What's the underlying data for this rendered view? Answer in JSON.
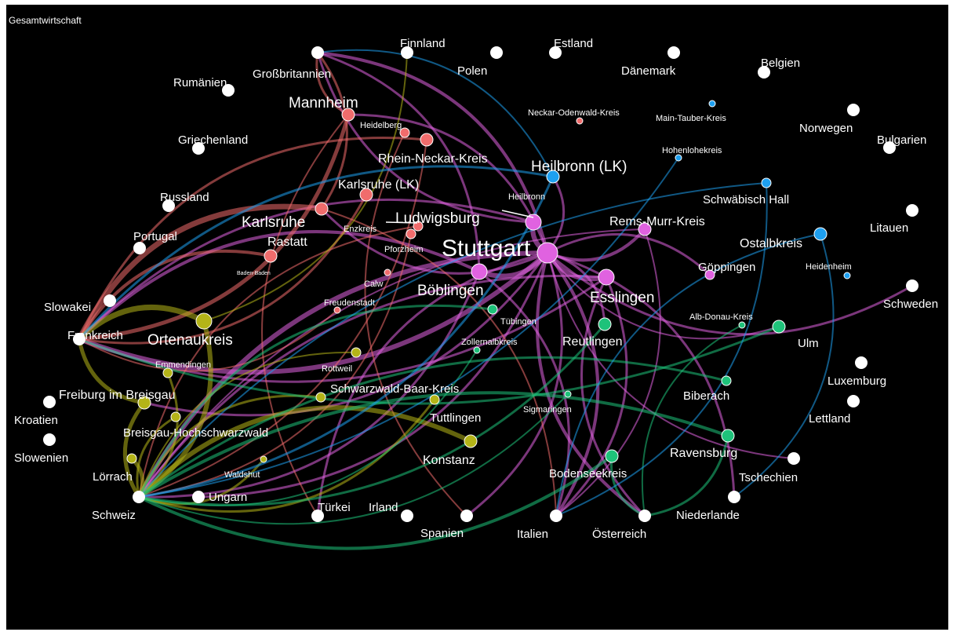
{
  "caption": "Gesamtwirtschaft",
  "groups": {
    "international": "#ffffff",
    "stuttgart": "#e062e0",
    "karlsruhe": "#f06c6c",
    "freiburg": "#b4b418",
    "tuebingen": "#1ec27a",
    "heilbronn": "#1ea0f0"
  },
  "nodes": [
    {
      "id": "grossbritannien",
      "label": "Großbritannien",
      "group": "international",
      "size": "medium"
    },
    {
      "id": "finnland",
      "label": "Finnland",
      "group": "international",
      "size": "medium"
    },
    {
      "id": "estland",
      "label": "Estland",
      "group": "international",
      "size": "medium"
    },
    {
      "id": "polen",
      "label": "Polen",
      "group": "international",
      "size": "medium"
    },
    {
      "id": "daenemark",
      "label": "Dänemark",
      "group": "international",
      "size": "medium"
    },
    {
      "id": "belgien",
      "label": "Belgien",
      "group": "international",
      "size": "medium"
    },
    {
      "id": "rumaenien",
      "label": "Rumänien",
      "group": "international",
      "size": "medium"
    },
    {
      "id": "norwegen",
      "label": "Norwegen",
      "group": "international",
      "size": "medium"
    },
    {
      "id": "bulgarien",
      "label": "Bulgarien",
      "group": "international",
      "size": "medium"
    },
    {
      "id": "griechenland",
      "label": "Griechenland",
      "group": "international",
      "size": "medium"
    },
    {
      "id": "russland",
      "label": "Russland",
      "group": "international",
      "size": "medium"
    },
    {
      "id": "litauen",
      "label": "Litauen",
      "group": "international",
      "size": "medium"
    },
    {
      "id": "portugal",
      "label": "Portugal",
      "group": "international",
      "size": "medium"
    },
    {
      "id": "schweden",
      "label": "Schweden",
      "group": "international",
      "size": "medium"
    },
    {
      "id": "slowakei",
      "label": "Slowakei",
      "group": "international",
      "size": "medium"
    },
    {
      "id": "frankreich",
      "label": "Frankreich",
      "group": "international",
      "size": "medium"
    },
    {
      "id": "luxemburg",
      "label": "Luxemburg",
      "group": "international",
      "size": "medium"
    },
    {
      "id": "lettland",
      "label": "Lettland",
      "group": "international",
      "size": "medium"
    },
    {
      "id": "kroatien",
      "label": "Kroatien",
      "group": "international",
      "size": "medium"
    },
    {
      "id": "slowenien",
      "label": "Slowenien",
      "group": "international",
      "size": "medium"
    },
    {
      "id": "tschechien",
      "label": "Tschechien",
      "group": "international",
      "size": "medium"
    },
    {
      "id": "schweiz",
      "label": "Schweiz",
      "group": "international",
      "size": "medium"
    },
    {
      "id": "ungarn",
      "label": "Ungarn",
      "group": "international",
      "size": "medium"
    },
    {
      "id": "tuerkei",
      "label": "Türkei",
      "group": "international",
      "size": "medium"
    },
    {
      "id": "irland",
      "label": "Irland",
      "group": "international",
      "size": "medium"
    },
    {
      "id": "spanien",
      "label": "Spanien",
      "group": "international",
      "size": "medium"
    },
    {
      "id": "italien",
      "label": "Italien",
      "group": "international",
      "size": "medium"
    },
    {
      "id": "oesterreich",
      "label": "Österreich",
      "group": "international",
      "size": "medium"
    },
    {
      "id": "niederlande",
      "label": "Niederlande",
      "group": "international",
      "size": "medium"
    },
    {
      "id": "stuttgart",
      "label": "Stuttgart",
      "group": "stuttgart",
      "size": "huge"
    },
    {
      "id": "ludwigsburg",
      "label": "Ludwigsburg",
      "group": "stuttgart",
      "size": "large"
    },
    {
      "id": "boeblingen",
      "label": "Böblingen",
      "group": "stuttgart",
      "size": "large"
    },
    {
      "id": "esslingen",
      "label": "Esslingen",
      "group": "stuttgart",
      "size": "large"
    },
    {
      "id": "remsmurr",
      "label": "Rems-Murr-Kreis",
      "group": "stuttgart",
      "size": "medium"
    },
    {
      "id": "goeppingen",
      "label": "Göppingen",
      "group": "stuttgart",
      "size": "small"
    },
    {
      "id": "mannheim",
      "label": "Mannheim",
      "group": "karlsruhe",
      "size": "medium"
    },
    {
      "id": "heidelberg",
      "label": "Heidelberg",
      "group": "karlsruhe",
      "size": "small"
    },
    {
      "id": "rheinneckar",
      "label": "Rhein-Neckar-Kreis",
      "group": "karlsruhe",
      "size": "medium"
    },
    {
      "id": "karlsruhelk",
      "label": "Karlsruhe (LK)",
      "group": "karlsruhe",
      "size": "medium"
    },
    {
      "id": "karlsruhe",
      "label": "Karlsruhe",
      "group": "karlsruhe",
      "size": "medium"
    },
    {
      "id": "enzkreis",
      "label": "Enzkreis",
      "group": "karlsruhe",
      "size": "small"
    },
    {
      "id": "pforzheim",
      "label": "Pforzheim",
      "group": "karlsruhe",
      "size": "small"
    },
    {
      "id": "rastatt",
      "label": "Rastatt",
      "group": "karlsruhe",
      "size": "medium"
    },
    {
      "id": "badenbaden",
      "label": "Baden-Baden",
      "group": "karlsruhe",
      "size": "tiny"
    },
    {
      "id": "calw",
      "label": "Calw",
      "group": "karlsruhe",
      "size": "tiny"
    },
    {
      "id": "freudenstadt",
      "label": "Freudenstadt",
      "group": "karlsruhe",
      "size": "tiny"
    },
    {
      "id": "neckarodenwald",
      "label": "Neckar-Odenwald-Kreis",
      "group": "karlsruhe",
      "size": "tiny"
    },
    {
      "id": "ortenaukreis",
      "label": "Ortenaukreis",
      "group": "freiburg",
      "size": "large"
    },
    {
      "id": "emmendingen",
      "label": "Emmendingen",
      "group": "freiburg",
      "size": "small"
    },
    {
      "id": "rottweil",
      "label": "Rottweil",
      "group": "freiburg",
      "size": "small"
    },
    {
      "id": "freiburg",
      "label": "Freiburg im Breisgau",
      "group": "freiburg",
      "size": "medium"
    },
    {
      "id": "schwarzwaldbaar",
      "label": "Schwarzwald-Baar-Kreis",
      "group": "freiburg",
      "size": "small"
    },
    {
      "id": "tuttlingen",
      "label": "Tuttlingen",
      "group": "freiburg",
      "size": "small"
    },
    {
      "id": "breisgau",
      "label": "Breisgau-Hochschwarzwald",
      "group": "freiburg",
      "size": "small"
    },
    {
      "id": "konstanz",
      "label": "Konstanz",
      "group": "freiburg",
      "size": "medium"
    },
    {
      "id": "loerrach",
      "label": "Lörrach",
      "group": "freiburg",
      "size": "small"
    },
    {
      "id": "waldshut",
      "label": "Waldshut",
      "group": "freiburg",
      "size": "tiny"
    },
    {
      "id": "tuebingen",
      "label": "Tübingen",
      "group": "tuebingen",
      "size": "small"
    },
    {
      "id": "zollernalb",
      "label": "Zollernalbkreis",
      "group": "tuebingen",
      "size": "tiny"
    },
    {
      "id": "reutlingen",
      "label": "Reutlingen",
      "group": "tuebingen",
      "size": "medium"
    },
    {
      "id": "albdonau",
      "label": "Alb-Donau-Kreis",
      "group": "tuebingen",
      "size": "tiny"
    },
    {
      "id": "ulm",
      "label": "Ulm",
      "group": "tuebingen",
      "size": "medium"
    },
    {
      "id": "biberach",
      "label": "Biberach",
      "group": "tuebingen",
      "size": "small"
    },
    {
      "id": "sigmaringen",
      "label": "Sigmaringen",
      "group": "tuebingen",
      "size": "tiny"
    },
    {
      "id": "ravensburg",
      "label": "Ravensburg",
      "group": "tuebingen",
      "size": "medium"
    },
    {
      "id": "bodensee",
      "label": "Bodenseekreis",
      "group": "tuebingen",
      "size": "medium"
    },
    {
      "id": "heilbronnlk",
      "label": "Heilbronn (LK)",
      "group": "heilbronn",
      "size": "medium"
    },
    {
      "id": "heilbronn",
      "label": "Heilbronn",
      "group": "heilbronn",
      "size": "tiny"
    },
    {
      "id": "maintauber",
      "label": "Main-Tauber-Kreis",
      "group": "heilbronn",
      "size": "tiny"
    },
    {
      "id": "hohenlohe",
      "label": "Hohenlohekreis",
      "group": "heilbronn",
      "size": "tiny"
    },
    {
      "id": "schwaebischhall",
      "label": "Schwäbisch Hall",
      "group": "heilbronn",
      "size": "small"
    },
    {
      "id": "ostalb",
      "label": "Ostalbkreis",
      "group": "heilbronn",
      "size": "medium"
    },
    {
      "id": "heidenheim",
      "label": "Heidenheim",
      "group": "heilbronn",
      "size": "tiny"
    }
  ],
  "edges": [
    {
      "from": "stuttgart",
      "to": "grossbritannien",
      "weight": 4
    },
    {
      "from": "stuttgart",
      "to": "frankreich",
      "weight": 6
    },
    {
      "from": "stuttgart",
      "to": "schweiz",
      "weight": 6
    },
    {
      "from": "stuttgart",
      "to": "italien",
      "weight": 4
    },
    {
      "from": "stuttgart",
      "to": "oesterreich",
      "weight": 4
    },
    {
      "from": "stuttgart",
      "to": "spanien",
      "weight": 3
    },
    {
      "from": "stuttgart",
      "to": "tuerkei",
      "weight": 3
    },
    {
      "from": "stuttgart",
      "to": "niederlande",
      "weight": 3
    },
    {
      "from": "stuttgart",
      "to": "schweden",
      "weight": 3
    },
    {
      "from": "stuttgart",
      "to": "ungarn",
      "weight": 3
    },
    {
      "from": "stuttgart",
      "to": "tschechien",
      "weight": 2
    },
    {
      "from": "stuttgart",
      "to": "boeblingen",
      "weight": 6
    },
    {
      "from": "stuttgart",
      "to": "esslingen",
      "weight": 6
    },
    {
      "from": "stuttgart",
      "to": "ludwigsburg",
      "weight": 6
    },
    {
      "from": "stuttgart",
      "to": "remsmurr",
      "weight": 4
    },
    {
      "from": "stuttgart",
      "to": "goeppingen",
      "weight": 3
    },
    {
      "from": "stuttgart",
      "to": "mannheim",
      "weight": 3
    },
    {
      "from": "stuttgart",
      "to": "karlsruhe",
      "weight": 3
    },
    {
      "from": "stuttgart",
      "to": "heilbronnlk",
      "weight": 3
    },
    {
      "from": "stuttgart",
      "to": "reutlingen",
      "weight": 3
    },
    {
      "from": "stuttgart",
      "to": "ulm",
      "weight": 2
    },
    {
      "from": "stuttgart",
      "to": "freiburg",
      "weight": 3
    },
    {
      "from": "boeblingen",
      "to": "frankreich",
      "weight": 4
    },
    {
      "from": "boeblingen",
      "to": "schweiz",
      "weight": 3
    },
    {
      "from": "boeblingen",
      "to": "grossbritannien",
      "weight": 3
    },
    {
      "from": "boeblingen",
      "to": "italien",
      "weight": 3
    },
    {
      "from": "esslingen",
      "to": "schweiz",
      "weight": 3
    },
    {
      "from": "esslingen",
      "to": "frankreich",
      "weight": 3
    },
    {
      "from": "esslingen",
      "to": "oesterreich",
      "weight": 3
    },
    {
      "from": "esslingen",
      "to": "italien",
      "weight": 3
    },
    {
      "from": "ludwigsburg",
      "to": "frankreich",
      "weight": 3
    },
    {
      "from": "ludwigsburg",
      "to": "grossbritannien",
      "weight": 3
    },
    {
      "from": "remsmurr",
      "to": "schweiz",
      "weight": 2
    },
    {
      "from": "remsmurr",
      "to": "italien",
      "weight": 2
    },
    {
      "from": "karlsruhe",
      "to": "frankreich",
      "weight": 7
    },
    {
      "from": "mannheim",
      "to": "frankreich",
      "weight": 5
    },
    {
      "from": "karlsruhe",
      "to": "grossbritannien",
      "weight": 3
    },
    {
      "from": "mannheim",
      "to": "grossbritannien",
      "weight": 3
    },
    {
      "from": "rastatt",
      "to": "frankreich",
      "weight": 4
    },
    {
      "from": "rheinneckar",
      "to": "schweiz",
      "weight": 2
    },
    {
      "from": "rheinneckar",
      "to": "frankreich",
      "weight": 3
    },
    {
      "from": "karlsruhelk",
      "to": "frankreich",
      "weight": 3
    },
    {
      "from": "heidelberg",
      "to": "spanien",
      "weight": 2
    },
    {
      "from": "pforzheim",
      "to": "schweiz",
      "weight": 2
    },
    {
      "from": "enzkreis",
      "to": "schweiz",
      "weight": 2
    },
    {
      "from": "freudenstadt",
      "to": "frankreich",
      "weight": 2
    },
    {
      "from": "mannheim",
      "to": "tuerkei",
      "weight": 2
    },
    {
      "from": "karlsruhe",
      "to": "italien",
      "weight": 2
    },
    {
      "from": "ortenaukreis",
      "to": "frankreich",
      "weight": 7
    },
    {
      "from": "ortenaukreis",
      "to": "schweiz",
      "weight": 6
    },
    {
      "from": "freiburg",
      "to": "schweiz",
      "weight": 5
    },
    {
      "from": "freiburg",
      "to": "frankreich",
      "weight": 5
    },
    {
      "from": "konstanz",
      "to": "schweiz",
      "weight": 6
    },
    {
      "from": "loerrach",
      "to": "schweiz",
      "weight": 5
    },
    {
      "from": "breisgau",
      "to": "schweiz",
      "weight": 3
    },
    {
      "from": "emmendingen",
      "to": "schweiz",
      "weight": 3
    },
    {
      "from": "schwarzwaldbaar",
      "to": "schweiz",
      "weight": 3
    },
    {
      "from": "tuttlingen",
      "to": "schweiz",
      "weight": 3
    },
    {
      "from": "rottweil",
      "to": "schweiz",
      "weight": 2
    },
    {
      "from": "waldshut",
      "to": "schweiz",
      "weight": 3
    },
    {
      "from": "ortenaukreis",
      "to": "finnland",
      "weight": 2
    },
    {
      "from": "bodensee",
      "to": "schweiz",
      "weight": 4
    },
    {
      "from": "ravensburg",
      "to": "schweiz",
      "weight": 4
    },
    {
      "from": "ravensburg",
      "to": "oesterreich",
      "weight": 3
    },
    {
      "from": "bodensee",
      "to": "oesterreich",
      "weight": 3
    },
    {
      "from": "reutlingen",
      "to": "schweiz",
      "weight": 3
    },
    {
      "from": "tuebingen",
      "to": "schweiz",
      "weight": 3
    },
    {
      "from": "ulm",
      "to": "frankreich",
      "weight": 3
    },
    {
      "from": "biberach",
      "to": "schweiz",
      "weight": 3
    },
    {
      "from": "zollernalb",
      "to": "schweiz",
      "weight": 2
    },
    {
      "from": "albdonau",
      "to": "oesterreich",
      "weight": 2
    },
    {
      "from": "sigmaringen",
      "to": "schweiz",
      "weight": 2
    },
    {
      "from": "heilbronnlk",
      "to": "frankreich",
      "weight": 3
    },
    {
      "from": "heilbronnlk",
      "to": "schweiz",
      "weight": 3
    },
    {
      "from": "heilbronnlk",
      "to": "grossbritannien",
      "weight": 2
    },
    {
      "from": "schwaebischhall",
      "to": "italien",
      "weight": 2
    },
    {
      "from": "schwaebischhall",
      "to": "schweiz",
      "weight": 2
    },
    {
      "from": "ostalb",
      "to": "niederlande",
      "weight": 2
    },
    {
      "from": "ostalb",
      "to": "italien",
      "weight": 2
    },
    {
      "from": "hohenlohe",
      "to": "schweiz",
      "weight": 2
    }
  ]
}
